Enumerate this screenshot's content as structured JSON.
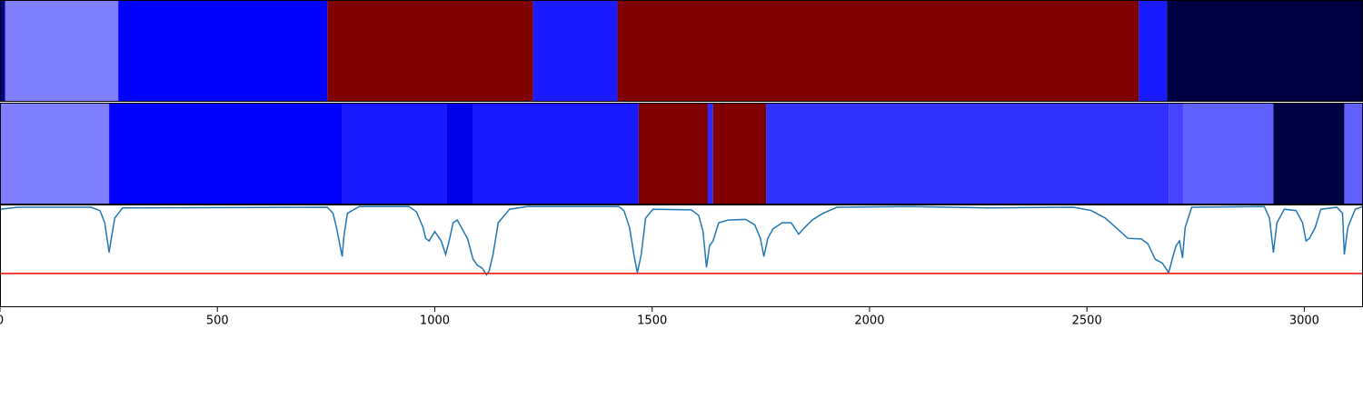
{
  "chart_data": {
    "type": "segments",
    "xlim": [
      0,
      3135
    ],
    "xticks": [
      0,
      500,
      1000,
      1500,
      2000,
      2500,
      3000
    ],
    "bands": [
      {
        "segments": [
          {
            "start": 0,
            "end": 12,
            "color": "#000080"
          },
          {
            "start": 12,
            "end": 272,
            "color": "#8080ff"
          },
          {
            "start": 272,
            "end": 753,
            "color": "#0000ff"
          },
          {
            "start": 753,
            "end": 1226,
            "color": "#800000"
          },
          {
            "start": 1226,
            "end": 1420,
            "color": "#1a1aff"
          },
          {
            "start": 1420,
            "end": 2619,
            "color": "#800000"
          },
          {
            "start": 2619,
            "end": 2684,
            "color": "#1a1aff"
          },
          {
            "start": 2684,
            "end": 3135,
            "color": "#000045"
          }
        ]
      },
      {
        "segments": [
          {
            "start": 0,
            "end": 251,
            "color": "#8080ff"
          },
          {
            "start": 251,
            "end": 787,
            "color": "#0000ff"
          },
          {
            "start": 787,
            "end": 1027,
            "color": "#1a1aff"
          },
          {
            "start": 1027,
            "end": 1088,
            "color": "#0000e8"
          },
          {
            "start": 1088,
            "end": 1469,
            "color": "#1a1aff"
          },
          {
            "start": 1469,
            "end": 1628,
            "color": "#800000"
          },
          {
            "start": 1628,
            "end": 1640,
            "color": "#2a2aff"
          },
          {
            "start": 1640,
            "end": 1762,
            "color": "#800000"
          },
          {
            "start": 1762,
            "end": 2688,
            "color": "#3030ff"
          },
          {
            "start": 2688,
            "end": 2722,
            "color": "#4545ff"
          },
          {
            "start": 2722,
            "end": 2929,
            "color": "#6060ff"
          },
          {
            "start": 2929,
            "end": 3092,
            "color": "#000045"
          },
          {
            "start": 3092,
            "end": 3135,
            "color": "#6060ff"
          }
        ]
      }
    ],
    "ylim": [
      -0.5,
      1.02
    ],
    "line": {
      "color": "#1f77b4",
      "x": [
        0,
        42,
        209,
        230,
        241,
        247,
        251,
        255,
        264,
        282,
        753,
        766,
        774,
        782,
        787,
        791,
        799,
        826,
        941,
        958,
        973,
        979,
        987,
        1000,
        1015,
        1025,
        1033,
        1042,
        1052,
        1063,
        1075,
        1088,
        1098,
        1109,
        1119,
        1125,
        1134,
        1146,
        1155,
        1172,
        1213,
        1423,
        1435,
        1448,
        1458,
        1466,
        1475,
        1485,
        1502,
        1590,
        1607,
        1617,
        1625,
        1632,
        1640,
        1653,
        1674,
        1715,
        1736,
        1749,
        1757,
        1766,
        1778,
        1799,
        1820,
        1837,
        1851,
        1868,
        1893,
        1925,
        2092,
        2280,
        2469,
        2510,
        2542,
        2577,
        2594,
        2625,
        2640,
        2657,
        2674,
        2688,
        2699,
        2705,
        2713,
        2720,
        2726,
        2741,
        2908,
        2920,
        2929,
        2937,
        2954,
        2981,
        2996,
        3004,
        3012,
        3025,
        3038,
        3075,
        3088,
        3092,
        3100,
        3117,
        3135
      ],
      "values": [
        0.95,
        0.98,
        0.98,
        0.93,
        0.75,
        0.48,
        0.31,
        0.48,
        0.82,
        0.97,
        0.98,
        0.89,
        0.68,
        0.41,
        0.25,
        0.55,
        0.89,
        0.99,
        0.99,
        0.91,
        0.68,
        0.52,
        0.48,
        0.62,
        0.48,
        0.28,
        0.48,
        0.75,
        0.79,
        0.66,
        0.52,
        0.21,
        0.12,
        0.08,
        -0.02,
        0.04,
        0.28,
        0.75,
        0.82,
        0.95,
        0.99,
        0.99,
        0.93,
        0.68,
        0.28,
        0.01,
        0.28,
        0.82,
        0.95,
        0.94,
        0.86,
        0.62,
        0.09,
        0.41,
        0.48,
        0.75,
        0.79,
        0.8,
        0.72,
        0.52,
        0.25,
        0.52,
        0.66,
        0.75,
        0.75,
        0.58,
        0.68,
        0.79,
        0.89,
        0.98,
        0.99,
        0.97,
        0.98,
        0.93,
        0.82,
        0.62,
        0.52,
        0.51,
        0.44,
        0.21,
        0.15,
        0.01,
        0.28,
        0.41,
        0.48,
        0.23,
        0.68,
        0.98,
        0.99,
        0.82,
        0.31,
        0.75,
        0.95,
        0.93,
        0.75,
        0.48,
        0.52,
        0.68,
        0.95,
        0.98,
        0.89,
        0.28,
        0.68,
        0.95,
        0.99
      ]
    },
    "threshold": {
      "value": 0,
      "color": "#ff0000"
    }
  }
}
